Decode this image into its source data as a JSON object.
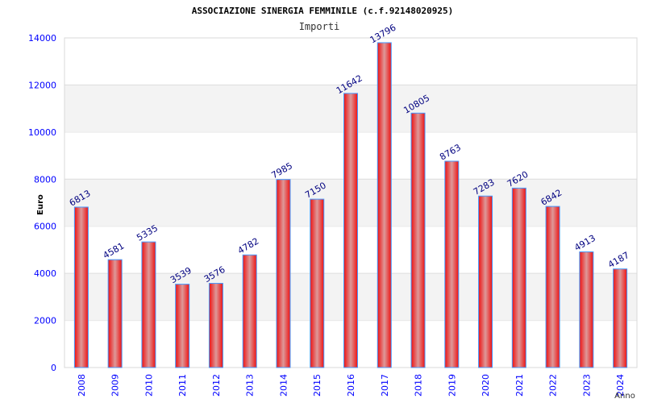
{
  "chart_data": {
    "type": "bar",
    "title": "ASSOCIAZIONE SINERGIA FEMMINILE (c.f.92148020925)",
    "subtitle": "Importi",
    "xlabel": "Anno",
    "ylabel": "Euro",
    "ylim": [
      0,
      14000
    ],
    "yticks": [
      "0",
      "2000",
      "4000",
      "6000",
      "8000",
      "10000",
      "12000",
      "14000"
    ],
    "categories": [
      "2008",
      "2009",
      "2010",
      "2011",
      "2012",
      "2013",
      "2014",
      "2015",
      "2016",
      "2017",
      "2018",
      "2019",
      "2020",
      "2021",
      "2022",
      "2023",
      "2024"
    ],
    "values": [
      6813,
      4581,
      5335,
      3539,
      3576,
      4782,
      7985,
      7150,
      11642,
      13796,
      10805,
      8763,
      7283,
      7620,
      6842,
      4913,
      4187
    ],
    "grid": true,
    "legend": "none",
    "colors": {
      "bar": "#ee1111",
      "bar_highlight": "#dd9999",
      "bar_edge": "#4499ff",
      "band": "#f3f3f3",
      "tick": "#0000ff",
      "data_label": "#000080"
    }
  }
}
